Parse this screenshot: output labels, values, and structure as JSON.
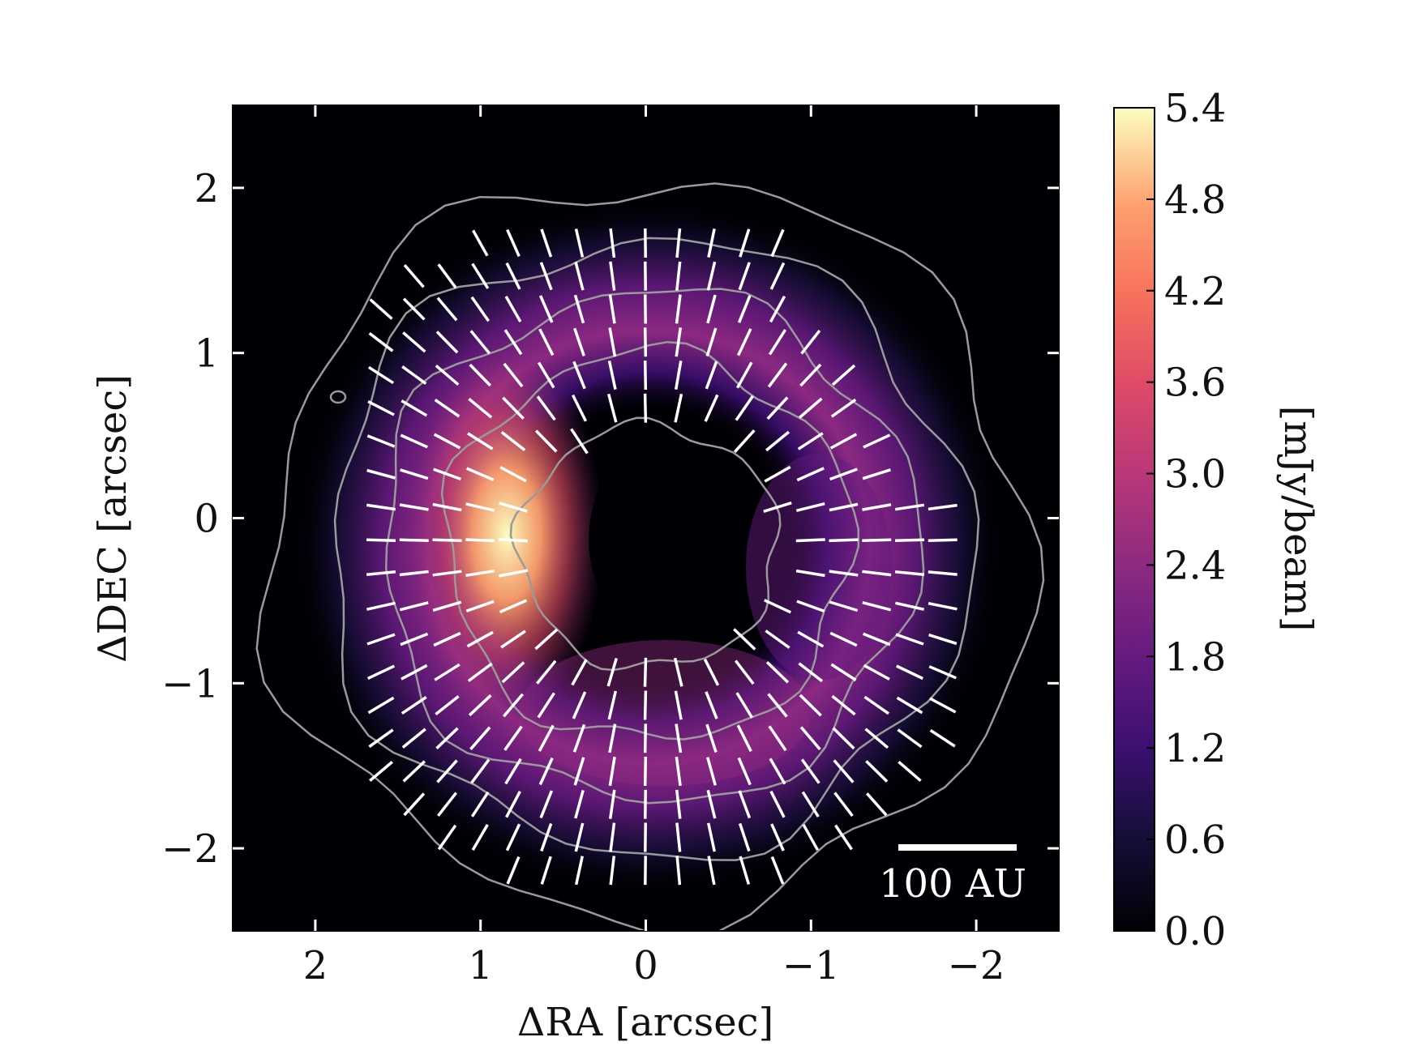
{
  "chart_data": {
    "type": "heatmap",
    "title": "",
    "xlabel": "ΔRA [arcsec]",
    "ylabel": "ΔDEC [arcsec]",
    "xlim": [
      2.5,
      -2.5
    ],
    "ylim": [
      -2.5,
      2.5
    ],
    "x_ticks": [
      2,
      1,
      0,
      -1,
      -2
    ],
    "x_tick_labels": [
      "2",
      "1",
      "0",
      "−1",
      "−2"
    ],
    "y_ticks": [
      2,
      1,
      0,
      -1,
      -2
    ],
    "y_tick_labels": [
      "2",
      "1",
      "0",
      "−1",
      "−2"
    ],
    "colorbar": {
      "label": "[mJy/beam]",
      "range": [
        0.0,
        5.4
      ],
      "ticks": [
        0.0,
        0.6,
        1.2,
        1.8,
        2.4,
        3.0,
        3.6,
        4.2,
        4.8,
        5.4
      ],
      "tick_labels": [
        "0.0",
        "0.6",
        "1.2",
        "1.8",
        "2.4",
        "3.0",
        "3.6",
        "4.2",
        "4.8",
        "5.4"
      ],
      "colormap": "magma"
    },
    "ring": {
      "center_x": 0.0,
      "center_y": -0.2,
      "radius": 1.1,
      "peak_intensity": 5.4,
      "peak_position_angle_deg": 90,
      "cavity_radius": 0.5
    },
    "contour_levels_mJy": [
      0.3,
      1.0,
      1.8,
      2.6
    ],
    "scale_bar": {
      "label": "100 AU",
      "length_arcsec": 0.7
    },
    "polarization_vectors": "radial pattern of white line segments over the disk"
  },
  "colors": {
    "background": "#000004",
    "vectors": "#ffffff",
    "contours": "#9a9a9a"
  }
}
